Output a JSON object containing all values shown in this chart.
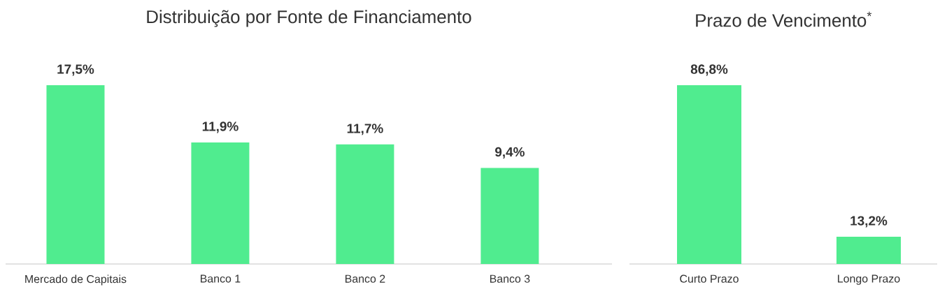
{
  "chart_data": [
    {
      "type": "bar",
      "title": "Distribuição por Fonte de Financiamento",
      "categories": [
        "Mercado de Capitais",
        "Banco 1",
        "Banco 2",
        "Banco 3"
      ],
      "values": [
        17.5,
        11.9,
        11.7,
        9.4
      ],
      "value_labels": [
        "17,5%",
        "11,9%",
        "11,7%",
        "9,4%"
      ],
      "color": "#50ec8f"
    },
    {
      "type": "bar",
      "title": "Prazo de Vencimento$^{*}$",
      "categories": [
        "Curto Prazo",
        "Longo Prazo"
      ],
      "values": [
        86.8,
        13.2
      ],
      "value_labels": [
        "86,8%",
        "13,2%"
      ],
      "color": "#50ec8f"
    }
  ]
}
